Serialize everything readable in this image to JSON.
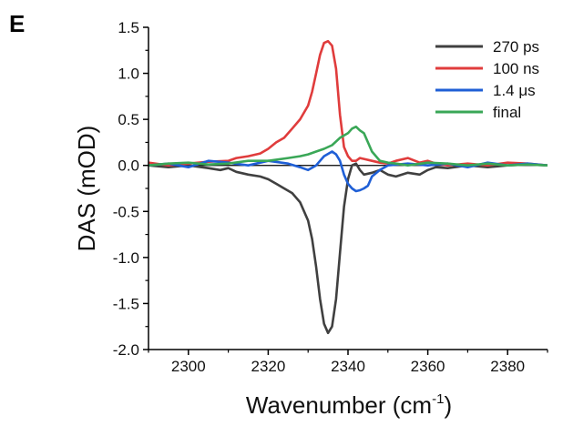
{
  "panel_label": "E",
  "chart_data": {
    "type": "line",
    "xlabel": "Wavenumber (cm",
    "xlabel_sup": "-1",
    "xlabel_close": ")",
    "ylabel": "DAS (mOD)",
    "xlim": [
      2290,
      2390
    ],
    "ylim": [
      -2.0,
      1.5
    ],
    "x_ticks": [
      2300,
      2320,
      2340,
      2360,
      2380
    ],
    "x_tick_labels": [
      "2300",
      "2320",
      "2340",
      "2360",
      "2380"
    ],
    "y_ticks": [
      -2.0,
      -1.5,
      -1.0,
      -0.5,
      0.0,
      0.5,
      1.0,
      1.5
    ],
    "y_tick_labels": [
      "-2.0",
      "-1.5",
      "-1.0",
      "-0.5",
      "0.0",
      "0.5",
      "1.0",
      "1.5"
    ],
    "zero_line": true,
    "grid": false,
    "legend_position": "top-right",
    "series": [
      {
        "name": "270 ps",
        "color": "#404040",
        "x": [
          2290,
          2295,
          2300,
          2305,
          2308,
          2310,
          2312,
          2315,
          2318,
          2320,
          2322,
          2324,
          2326,
          2328,
          2330,
          2331,
          2332,
          2333,
          2334,
          2335,
          2336,
          2337,
          2338,
          2339,
          2340,
          2341,
          2342,
          2343,
          2344,
          2346,
          2348,
          2350,
          2352,
          2355,
          2358,
          2360,
          2362,
          2365,
          2370,
          2375,
          2380,
          2385,
          2390
        ],
        "y": [
          0.0,
          -0.02,
          0.0,
          -0.03,
          -0.05,
          -0.03,
          -0.07,
          -0.1,
          -0.12,
          -0.15,
          -0.2,
          -0.25,
          -0.3,
          -0.4,
          -0.6,
          -0.8,
          -1.1,
          -1.45,
          -1.72,
          -1.82,
          -1.75,
          -1.45,
          -0.95,
          -0.45,
          -0.15,
          0.0,
          0.02,
          -0.05,
          -0.1,
          -0.08,
          -0.05,
          -0.1,
          -0.12,
          -0.08,
          -0.1,
          -0.05,
          -0.02,
          -0.03,
          0.0,
          -0.02,
          0.0,
          0.01,
          0.0
        ]
      },
      {
        "name": "100 ns",
        "color": "#e03c3c",
        "x": [
          2290,
          2295,
          2300,
          2305,
          2310,
          2312,
          2315,
          2318,
          2320,
          2322,
          2324,
          2326,
          2328,
          2330,
          2331,
          2332,
          2333,
          2334,
          2335,
          2336,
          2337,
          2338,
          2339,
          2340,
          2341,
          2342,
          2343,
          2344,
          2346,
          2348,
          2350,
          2352,
          2355,
          2358,
          2360,
          2362,
          2365,
          2370,
          2375,
          2380,
          2385,
          2390
        ],
        "y": [
          0.03,
          0.0,
          0.02,
          0.04,
          0.05,
          0.08,
          0.1,
          0.13,
          0.18,
          0.25,
          0.3,
          0.4,
          0.5,
          0.65,
          0.8,
          1.0,
          1.2,
          1.33,
          1.35,
          1.3,
          1.05,
          0.55,
          0.2,
          0.1,
          0.05,
          0.05,
          0.08,
          0.07,
          0.05,
          0.03,
          0.02,
          0.05,
          0.08,
          0.03,
          0.05,
          0.02,
          0.0,
          0.02,
          0.0,
          0.03,
          0.02,
          0.0
        ]
      },
      {
        "name": "1.4 μs",
        "color": "#1f5fd6",
        "x": [
          2290,
          2295,
          2300,
          2305,
          2310,
          2315,
          2320,
          2325,
          2328,
          2330,
          2332,
          2334,
          2336,
          2337,
          2338,
          2339,
          2340,
          2341,
          2342,
          2343,
          2344,
          2345,
          2346,
          2348,
          2350,
          2355,
          2360,
          2365,
          2370,
          2375,
          2380,
          2385,
          2390
        ],
        "y": [
          0.0,
          0.02,
          -0.02,
          0.05,
          0.03,
          0.0,
          0.05,
          0.02,
          -0.02,
          -0.05,
          0.0,
          0.1,
          0.15,
          0.12,
          0.05,
          -0.1,
          -0.2,
          -0.25,
          -0.28,
          -0.27,
          -0.25,
          -0.22,
          -0.12,
          -0.05,
          0.0,
          0.02,
          0.0,
          0.02,
          -0.02,
          0.03,
          0.0,
          0.02,
          0.0
        ]
      },
      {
        "name": "final",
        "color": "#3aa757",
        "x": [
          2290,
          2295,
          2300,
          2305,
          2310,
          2315,
          2320,
          2325,
          2328,
          2330,
          2332,
          2334,
          2336,
          2338,
          2340,
          2341,
          2342,
          2343,
          2344,
          2345,
          2346,
          2348,
          2350,
          2352,
          2355,
          2360,
          2365,
          2370,
          2375,
          2380,
          2385,
          2390
        ],
        "y": [
          0.0,
          0.02,
          0.03,
          0.01,
          0.02,
          0.05,
          0.05,
          0.08,
          0.1,
          0.12,
          0.15,
          0.18,
          0.22,
          0.3,
          0.35,
          0.4,
          0.42,
          0.38,
          0.35,
          0.25,
          0.15,
          0.05,
          0.03,
          0.02,
          0.0,
          0.03,
          0.02,
          0.0,
          0.02,
          0.0,
          0.01,
          0.0
        ]
      }
    ]
  }
}
